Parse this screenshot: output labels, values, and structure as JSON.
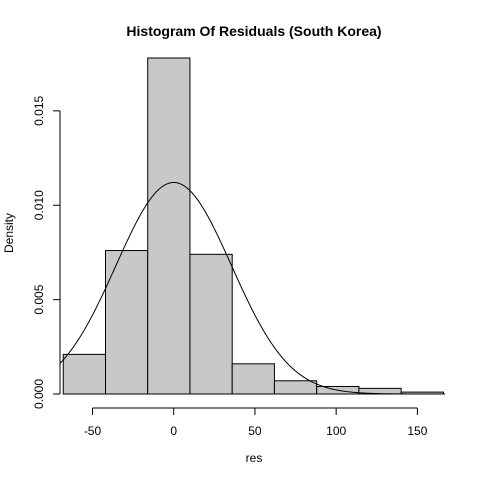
{
  "chart_data": {
    "type": "bar",
    "title": "Histogram Of Residuals (South Korea)",
    "xlabel": "res",
    "ylabel": "Density",
    "xlim": [
      -70,
      167
    ],
    "ylim": [
      0,
      0.0178
    ],
    "x_ticks": [
      -50,
      0,
      50,
      100,
      150
    ],
    "x_tick_labels": [
      "-50",
      "0",
      "50",
      "100",
      "150"
    ],
    "y_ticks": [
      0,
      0.005,
      0.01,
      0.015
    ],
    "y_tick_labels": [
      "0.000",
      "0.005",
      "0.010",
      "0.015"
    ],
    "grid": false,
    "bins": [
      {
        "x0": -68,
        "x1": -42,
        "density": 0.0021
      },
      {
        "x0": -42,
        "x1": -16,
        "density": 0.0076
      },
      {
        "x0": -16,
        "x1": 10,
        "density": 0.0178
      },
      {
        "x0": 10,
        "x1": 36,
        "density": 0.0074
      },
      {
        "x0": 36,
        "x1": 62,
        "density": 0.0016
      },
      {
        "x0": 62,
        "x1": 88,
        "density": 0.0007
      },
      {
        "x0": 88,
        "x1": 114,
        "density": 0.0004
      },
      {
        "x0": 114,
        "x1": 140,
        "density": 0.0003
      },
      {
        "x0": 140,
        "x1": 166,
        "density": 0.0001
      }
    ],
    "density_curve": {
      "type": "normal",
      "mean": 0,
      "sd": 35.6
    }
  }
}
